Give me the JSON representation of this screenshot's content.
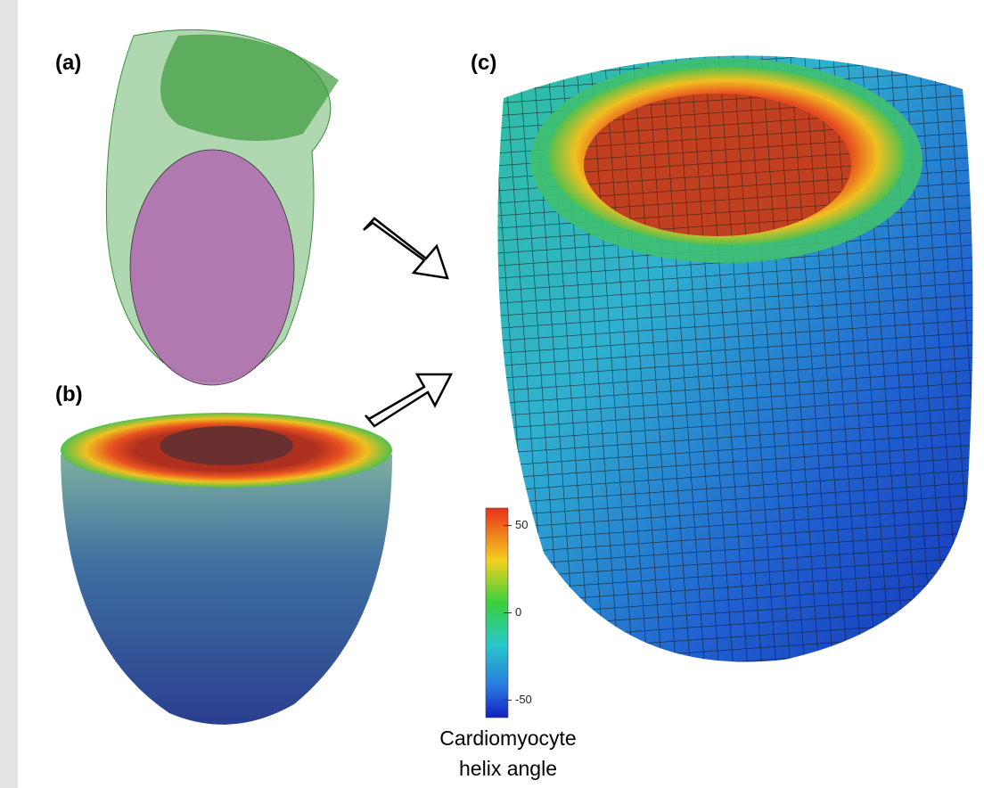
{
  "panels": [
    {
      "label": "(a)"
    },
    {
      "label": "(b)"
    },
    {
      "label": "(c)"
    }
  ],
  "colorbar": {
    "label_lines": [
      "Cardiomyocyte",
      "helix angle"
    ],
    "ticks": [
      50,
      0,
      -50
    ],
    "lim": [
      -60,
      60
    ]
  }
}
